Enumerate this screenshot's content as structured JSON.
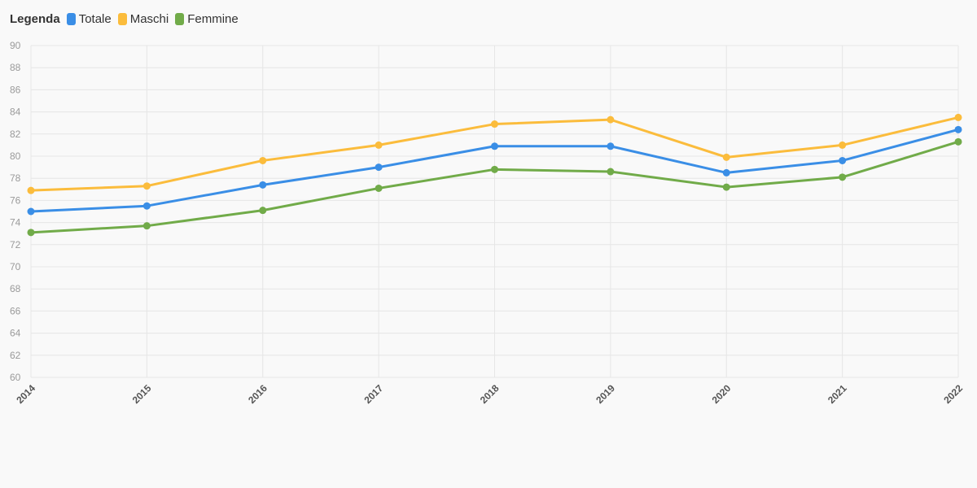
{
  "legend": {
    "title": "Legenda",
    "items": [
      {
        "label": "Totale",
        "color": "#3a8ee6"
      },
      {
        "label": "Maschi",
        "color": "#fbbc3c"
      },
      {
        "label": "Femmine",
        "color": "#71ab49"
      }
    ]
  },
  "chart_data": {
    "type": "line",
    "title": "",
    "xlabel": "",
    "ylabel": "",
    "x": [
      "2014",
      "2015",
      "2016",
      "2017",
      "2018",
      "2019",
      "2020",
      "2021",
      "2022"
    ],
    "ylim": [
      60,
      90
    ],
    "yticks": [
      60,
      62,
      64,
      66,
      68,
      70,
      72,
      74,
      76,
      78,
      80,
      82,
      84,
      86,
      88,
      90
    ],
    "grid": true,
    "legend_position": "top-left",
    "series": [
      {
        "name": "Totale",
        "color": "#3a8ee6",
        "values": [
          75.0,
          75.5,
          77.4,
          79.0,
          80.9,
          80.9,
          78.5,
          79.6,
          82.4
        ]
      },
      {
        "name": "Maschi",
        "color": "#fbbc3c",
        "values": [
          76.9,
          77.3,
          79.6,
          81.0,
          82.9,
          83.3,
          79.9,
          81.0,
          83.5
        ]
      },
      {
        "name": "Femmine",
        "color": "#71ab49",
        "values": [
          73.1,
          73.7,
          75.1,
          77.1,
          78.8,
          78.6,
          77.2,
          78.1,
          81.3
        ]
      }
    ]
  }
}
